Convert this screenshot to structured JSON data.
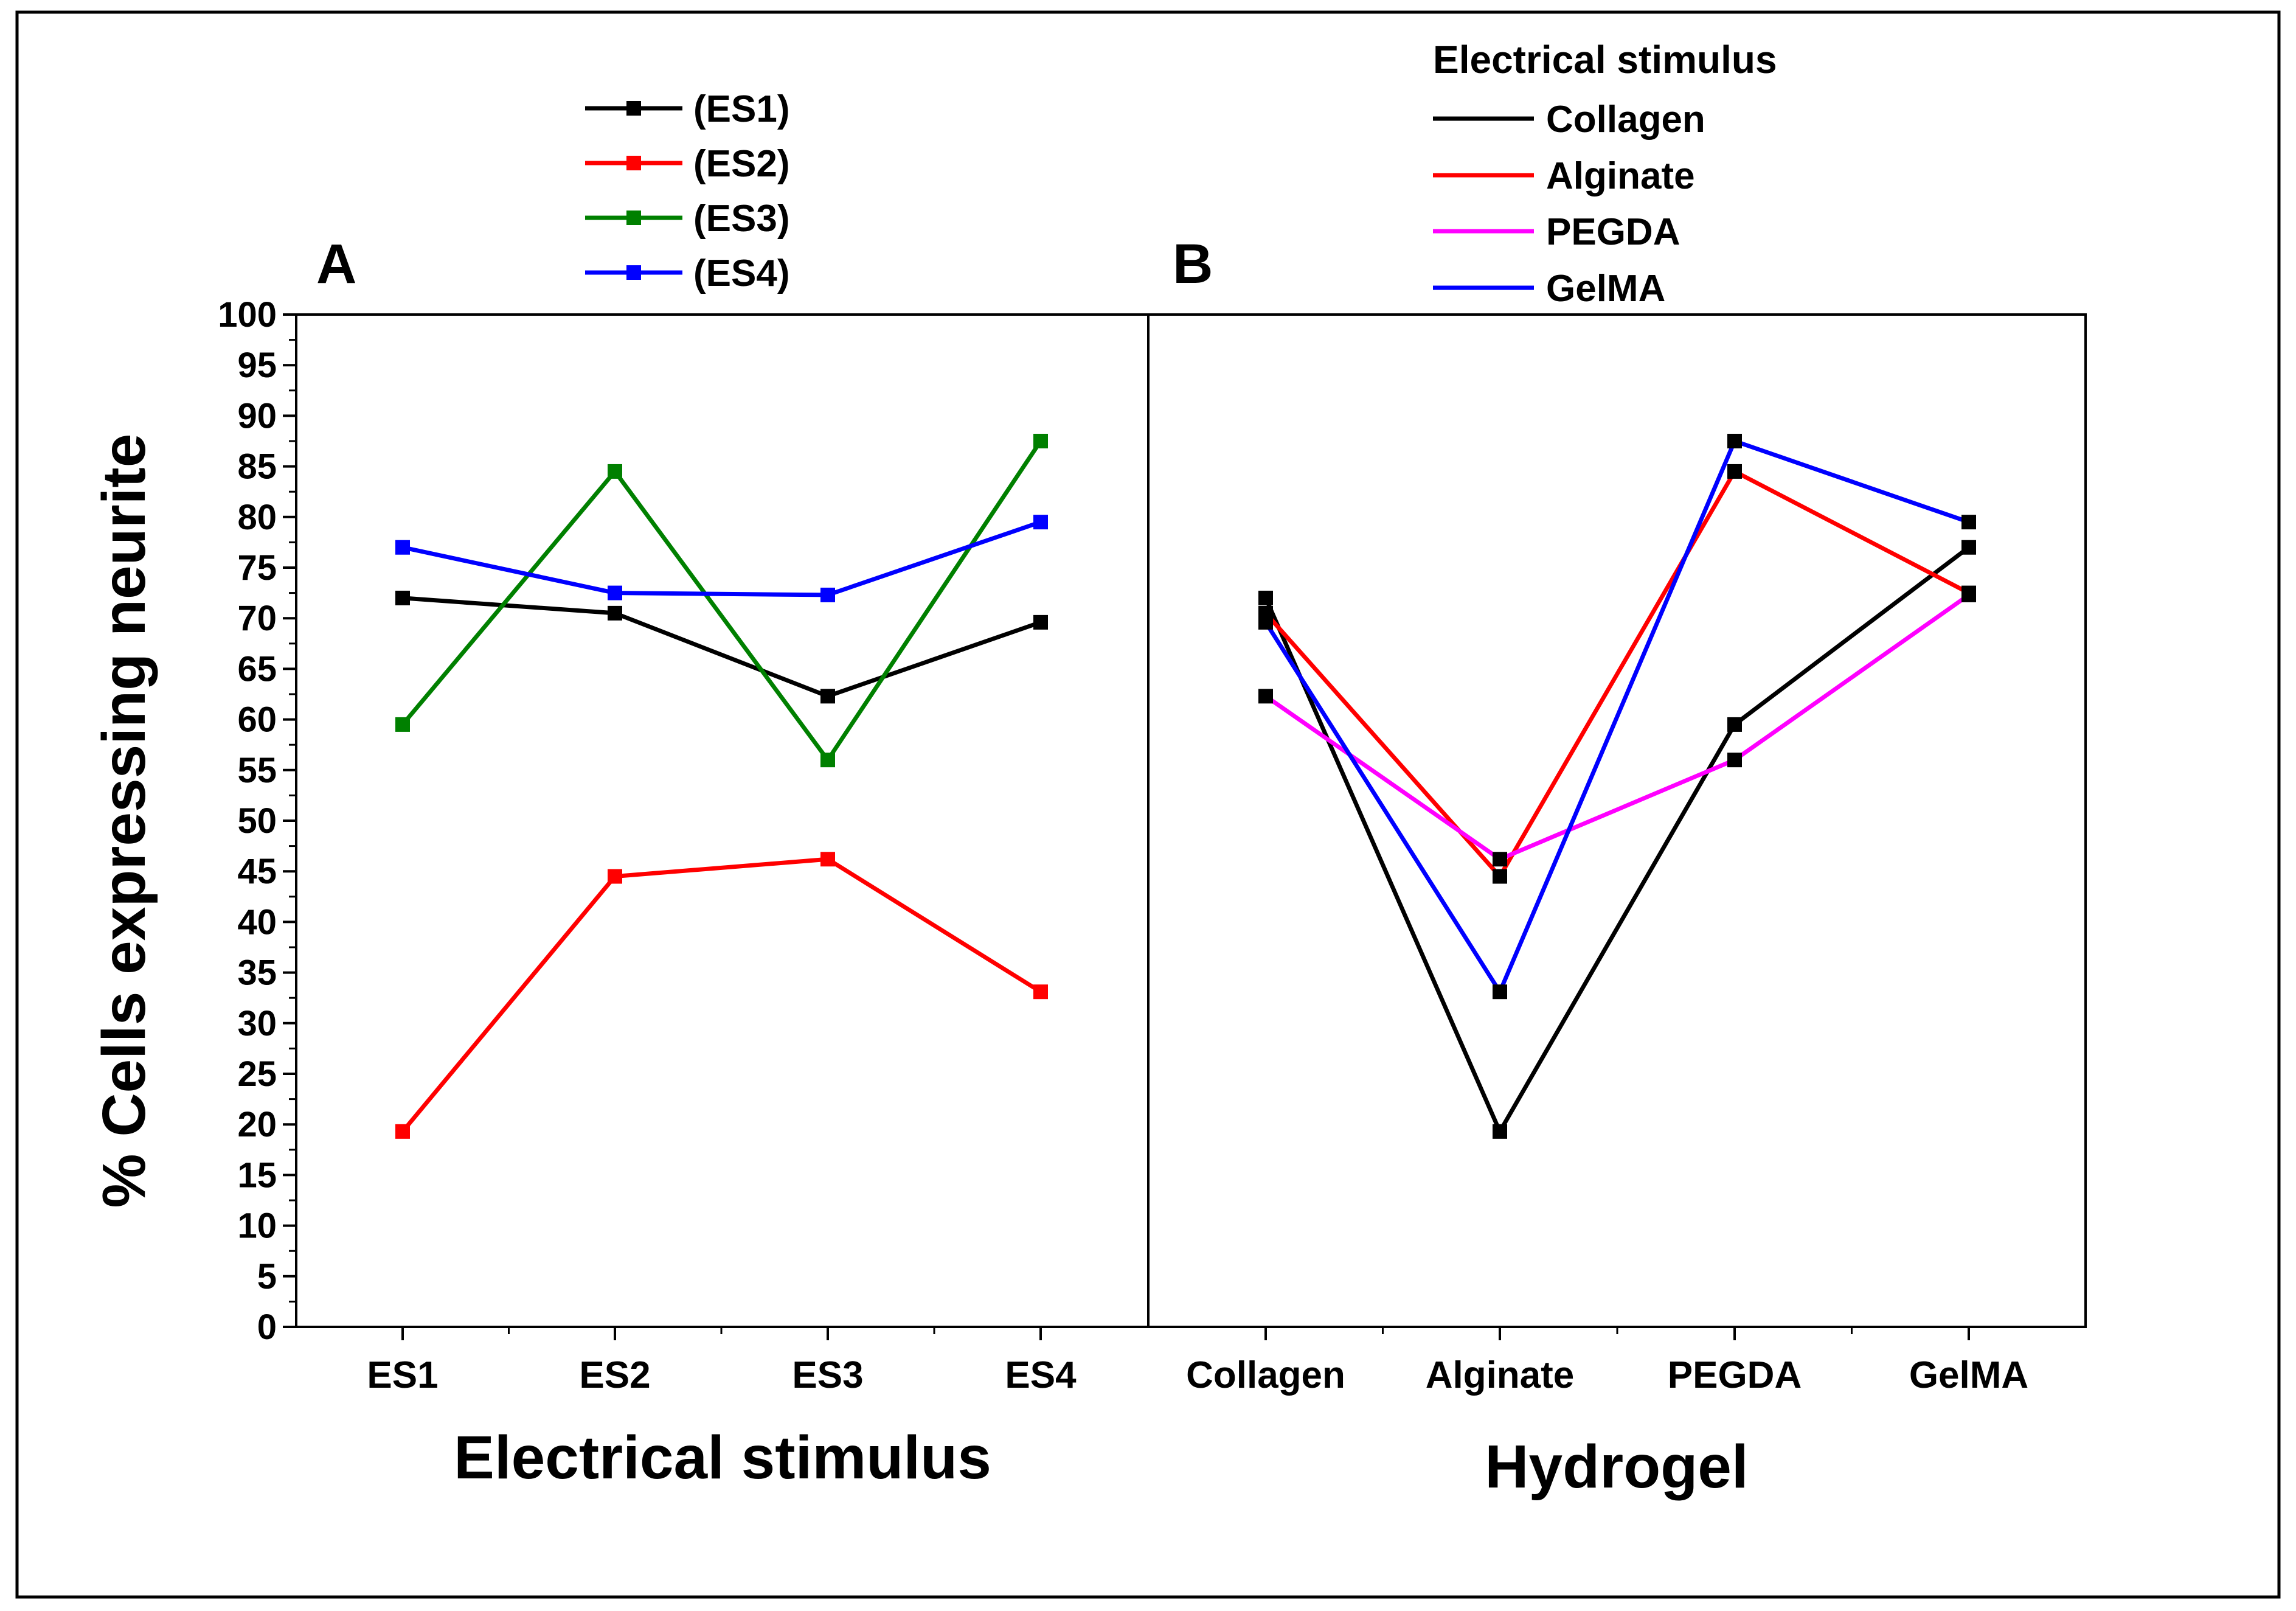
{
  "chart_data": [
    {
      "type": "line",
      "panel_label": "A",
      "xlabel": "Electrical stimulus",
      "ylabel": "% Cells expressing neurite",
      "categories": [
        "ES1",
        "ES2",
        "ES3",
        "ES4"
      ],
      "ylim": [
        0,
        100
      ],
      "y_ticks": [
        "0",
        "5",
        "10",
        "15",
        "20",
        "25",
        "30",
        "35",
        "40",
        "45",
        "50",
        "55",
        "60",
        "65",
        "70",
        "75",
        "80",
        "85",
        "90",
        "95",
        "100"
      ],
      "grid": false,
      "legend_position": "top-center",
      "series": [
        {
          "name": "(ES1)",
          "color": "#000000",
          "values": [
            72,
            70.5,
            62.3,
            69.6
          ]
        },
        {
          "name": "(ES2)",
          "color": "#ff0000",
          "values": [
            19.3,
            44.5,
            46.2,
            33.1
          ]
        },
        {
          "name": "(ES3)",
          "color": "#008000",
          "values": [
            59.5,
            84.5,
            56,
            87.5
          ]
        },
        {
          "name": "(ES4)",
          "color": "#0000ff",
          "values": [
            77,
            72.5,
            72.3,
            79.5
          ]
        }
      ]
    },
    {
      "type": "line",
      "panel_label": "B",
      "xlabel": "Hydrogel",
      "categories": [
        "Collagen",
        "Alginate",
        "PEGDA",
        "GelMA"
      ],
      "ylim": [
        0,
        100
      ],
      "grid": false,
      "legend_title": "Electrical stimulus",
      "legend_position": "top-right",
      "series": [
        {
          "name": "Collagen",
          "color": "#000000",
          "values": [
            72,
            19.3,
            59.5,
            77
          ]
        },
        {
          "name": "Alginate",
          "color": "#ff0000",
          "values": [
            70.5,
            44.5,
            84.5,
            72.5
          ]
        },
        {
          "name": "PEGDA",
          "color": "#ff00ff",
          "values": [
            62.3,
            46.2,
            56,
            72.3
          ]
        },
        {
          "name": "GelMA",
          "color": "#0000ff",
          "values": [
            69.6,
            33.1,
            87.5,
            79.5
          ]
        }
      ]
    }
  ]
}
